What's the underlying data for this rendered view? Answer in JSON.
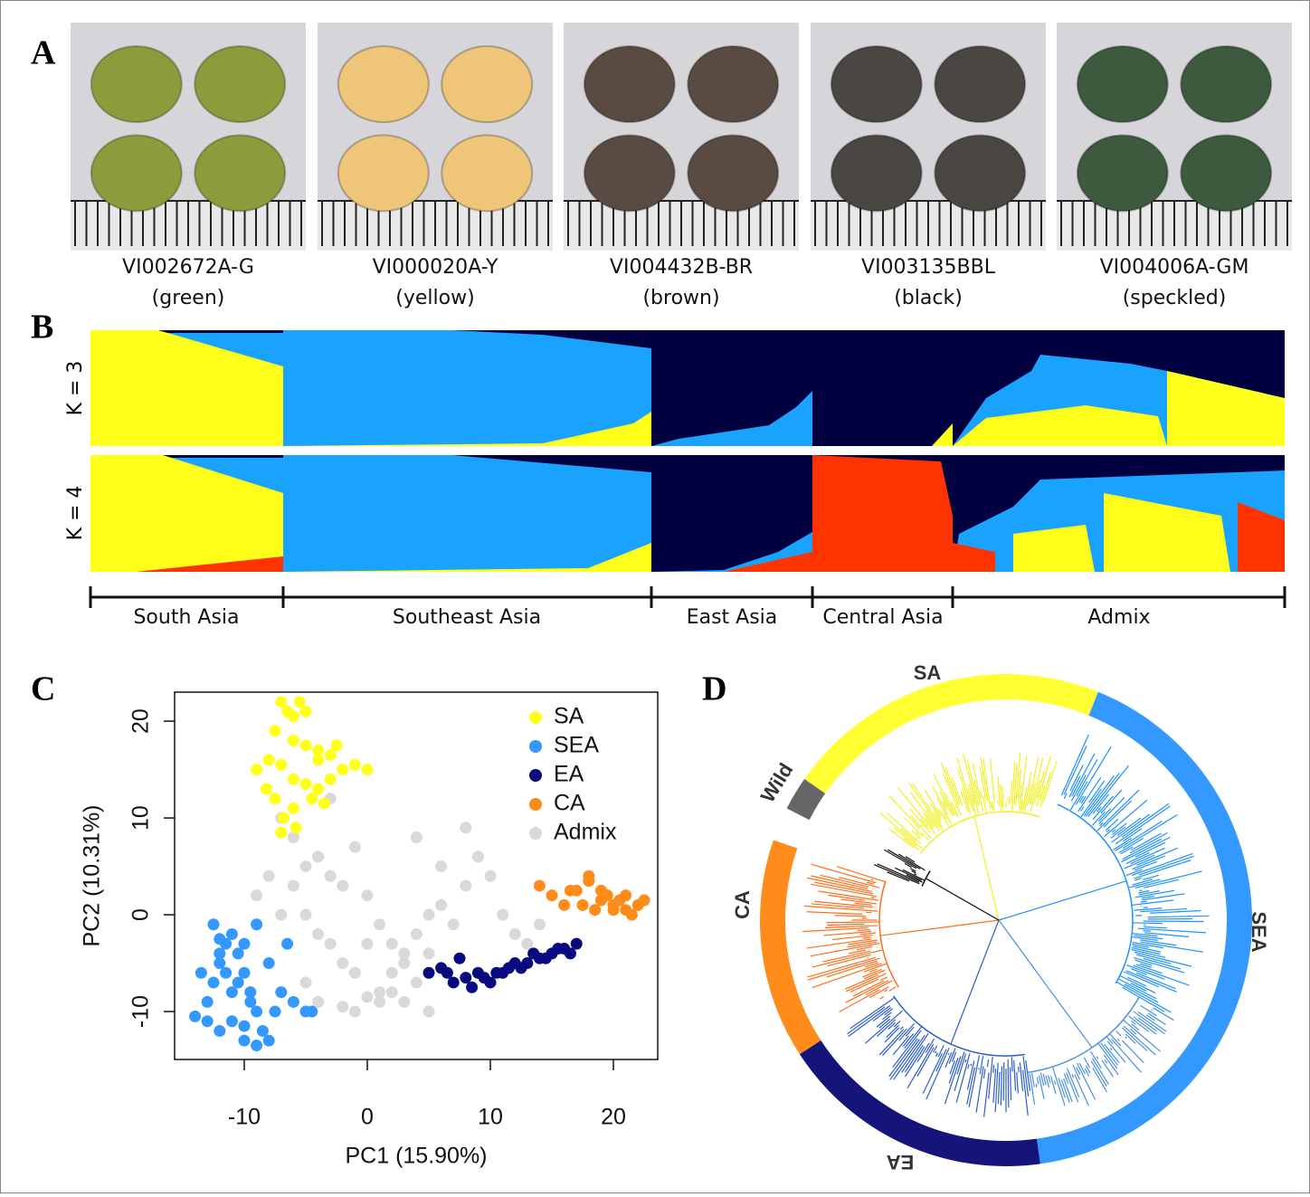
{
  "panel_labels": [
    "A",
    "B",
    "C",
    "D"
  ],
  "accessions": [
    {
      "id": "VI002672A-G",
      "color": "(green)"
    },
    {
      "id": "VI000020A-Y",
      "color": "(yellow)"
    },
    {
      "id": "VI004432B-BR",
      "color": "(brown)"
    },
    {
      "id": "VI003135BBL",
      "color": "(black)"
    },
    {
      "id": "VI004006A-GM",
      "color": "(speckled)"
    }
  ],
  "structure": {
    "k_labels": [
      "K = 3",
      "K = 4"
    ],
    "groups": [
      "South Asia",
      "Southeast Asia",
      "East Asia",
      "Central Asia",
      "Admix"
    ]
  },
  "chart_data": {
    "type": "scatter",
    "xlabel": "PC1 (15.90%)",
    "ylabel": "PC2 (10.31%)",
    "xlim": [
      -15.66,
      23.6
    ],
    "ylim": [
      -14.95,
      23.0
    ],
    "xticks": [
      -10,
      0,
      10,
      20
    ],
    "yticks": [
      -10,
      0,
      10,
      20
    ],
    "legend": "top-right",
    "series": [
      {
        "name": "SA",
        "color": "#ffff1a",
        "x": [
          -7,
          -6.5,
          -6,
          -5.5,
          -5,
          -7.5,
          -6,
          -5,
          -4,
          -3,
          -2,
          -8,
          -7,
          -6,
          -5,
          -4,
          -3,
          -9,
          -7.5,
          -6,
          -4.5,
          -3.5,
          -1,
          0,
          -6.8,
          -5.8,
          -8.2,
          -2.5,
          -4,
          -7
        ],
        "values": [
          22,
          21,
          20.5,
          22,
          21,
          19,
          18,
          17.5,
          17,
          16.5,
          15,
          16,
          15.5,
          14,
          13.5,
          13,
          14,
          15,
          12,
          11,
          12,
          11.5,
          15.5,
          15,
          10,
          9,
          13,
          17.5,
          16,
          8.5
        ]
      },
      {
        "name": "SEA",
        "color": "#3399ff",
        "x": [
          -14,
          -13,
          -12.5,
          -12,
          -11.5,
          -11,
          -10.5,
          -10,
          -9.5,
          -9,
          -8.5,
          -8,
          -7.5,
          -7,
          -6,
          -5,
          -13,
          -12,
          -11,
          -10,
          -9,
          -12.5,
          -11.5,
          -10.5,
          -9.5,
          -13.5,
          -12,
          -10,
          -8,
          -6.5,
          -11,
          -9,
          -4.5,
          -12,
          -10
        ],
        "values": [
          -10.5,
          -9,
          -7,
          -5,
          -3,
          -2,
          -4,
          -6,
          -8,
          -10,
          -12,
          -13,
          -10,
          -8,
          -9,
          -10,
          -11,
          -12,
          -11,
          -13,
          -13.5,
          -1,
          -6,
          -7,
          -9,
          -6,
          -4,
          -3,
          -5,
          -3,
          -8,
          -1,
          -10,
          -2.5,
          -11.5
        ]
      },
      {
        "name": "EA",
        "color": "#0a0a80",
        "x": [
          5,
          6,
          7,
          8,
          9,
          10,
          11,
          12,
          13,
          14,
          15,
          16,
          17,
          7.5,
          9.5,
          11.5,
          13.5,
          15.5,
          16.5,
          10.5,
          12.5,
          14.5,
          8.5,
          6.5
        ],
        "values": [
          -6,
          -5.5,
          -7,
          -6.5,
          -6,
          -7,
          -6,
          -5,
          -5,
          -4.5,
          -4,
          -3.5,
          -3,
          -4.5,
          -6.5,
          -5.5,
          -4,
          -3.5,
          -4,
          -6,
          -5.5,
          -4.5,
          -7.5,
          -6
        ]
      },
      {
        "name": "CA",
        "color": "#ff8c1a",
        "x": [
          14,
          15,
          16,
          17,
          18,
          19,
          20,
          21,
          22,
          22.5,
          18,
          19.5,
          21,
          20,
          17.5,
          16.5,
          21.5,
          19,
          20.5,
          18.5
        ],
        "values": [
          3,
          2,
          1,
          2.5,
          4,
          1.5,
          1,
          0.5,
          1,
          1.5,
          3.5,
          2,
          2,
          0.5,
          1,
          2.5,
          0,
          2.5,
          1.5,
          0.5
        ]
      },
      {
        "name": "Admix",
        "color": "#d9d9d9",
        "x": [
          -7,
          -6,
          -5,
          -4,
          -3,
          -2,
          -1,
          0,
          1,
          2,
          3,
          4,
          5,
          6,
          7,
          8,
          -5,
          -3,
          -1,
          1,
          3,
          5,
          -6,
          -4,
          -2,
          0,
          2,
          4,
          -8,
          -9,
          -4,
          -2,
          0,
          2,
          4,
          6,
          8,
          10,
          12,
          14,
          -3,
          -1,
          1,
          9,
          11,
          13,
          5,
          3,
          -5,
          -7
        ],
        "values": [
          10,
          8,
          5,
          6,
          4,
          3,
          7,
          2,
          -1,
          -3,
          -5,
          -2,
          -4,
          1,
          -1,
          9,
          0,
          -3,
          -6,
          -8,
          -9,
          -10,
          3,
          -9,
          -9.5,
          -8.5,
          -8,
          -7,
          4,
          2,
          -2,
          -5,
          -3,
          -6,
          8,
          5,
          3,
          4,
          -2,
          -1,
          12,
          -10,
          -9,
          6,
          0,
          -3,
          0,
          -4,
          -7,
          0
        ]
      }
    ]
  },
  "tree": {
    "clades": [
      "SA",
      "SEA",
      "EA",
      "CA",
      "Wild"
    ]
  }
}
